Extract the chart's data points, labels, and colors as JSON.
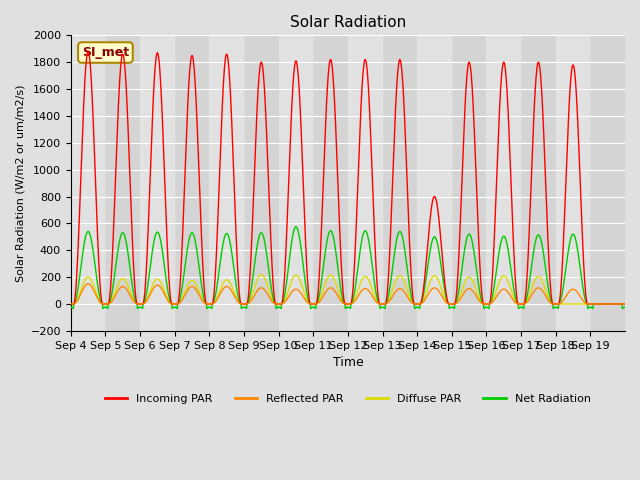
{
  "title": "Solar Radiation",
  "ylabel": "Solar Radiation (W/m2 or um/m2/s)",
  "xlabel": "Time",
  "ylim": [
    -200,
    2000
  ],
  "fig_bg_color": "#e0e0e0",
  "plot_bg_color": "#d8d8d8",
  "annotation_text": "SI_met",
  "annotation_bg": "#ffffcc",
  "annotation_border": "#aa8800",
  "x_tick_labels": [
    "Sep 4",
    "Sep 5",
    "Sep 6",
    "Sep 7",
    "Sep 8",
    "Sep 9",
    "Sep 10",
    "Sep 11",
    "Sep 12",
    "Sep 13",
    "Sep 14",
    "Sep 15",
    "Sep 16",
    "Sep 17",
    "Sep 18",
    "Sep 19"
  ],
  "series": {
    "incoming_par": {
      "color": "#ff0000",
      "label": "Incoming PAR",
      "peak": [
        1880,
        1860,
        1870,
        1850,
        1860,
        1800,
        1810,
        1820,
        1820,
        1820,
        800,
        1800,
        1800,
        1800,
        1780,
        0
      ]
    },
    "reflected_par": {
      "color": "#ff8800",
      "label": "Reflected PAR",
      "peak": [
        150,
        130,
        140,
        130,
        130,
        120,
        110,
        120,
        115,
        115,
        120,
        115,
        110,
        120,
        110,
        0
      ]
    },
    "diffuse_par": {
      "color": "#dddd00",
      "label": "Diffuse PAR",
      "peak": [
        200,
        190,
        185,
        175,
        180,
        220,
        215,
        215,
        205,
        210,
        210,
        200,
        210,
        205,
        0,
        0
      ]
    },
    "net_radiation": {
      "color": "#00cc00",
      "label": "Net Radiation",
      "peak": [
        540,
        530,
        535,
        530,
        525,
        530,
        575,
        545,
        545,
        540,
        500,
        520,
        505,
        515,
        520,
        0
      ]
    }
  },
  "days": 16,
  "pts_per_day": 120,
  "night_trough": -70,
  "yticks": [
    -200,
    0,
    200,
    400,
    600,
    800,
    1000,
    1200,
    1400,
    1600,
    1800,
    2000
  ],
  "legend_colors": [
    "#ff0000",
    "#ff8800",
    "#dddd00",
    "#00cc00"
  ],
  "legend_labels": [
    "Incoming PAR",
    "Reflected PAR",
    "Diffuse PAR",
    "Net Radiation"
  ]
}
